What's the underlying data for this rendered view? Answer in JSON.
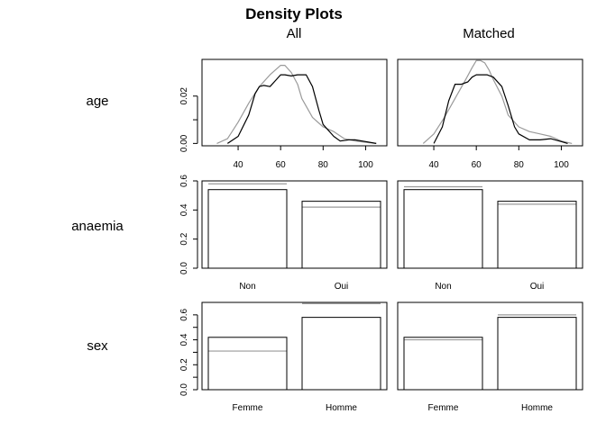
{
  "title": "Density Plots",
  "columns": [
    "All",
    "Matched"
  ],
  "colors": {
    "all_series": "#000000",
    "comparison_series": "#9a9a9a"
  },
  "chart_data": [
    {
      "type": "line",
      "variable": "age",
      "xlim": [
        23,
        110
      ],
      "ylim": [
        -0.001,
        0.0355
      ],
      "xticks": [
        40,
        60,
        80,
        100
      ],
      "yticks": [
        0.0,
        0.01,
        0.02
      ],
      "ytick_labels": [
        "0.00",
        "",
        "0.02"
      ],
      "panels": [
        {
          "column": "All",
          "series": [
            {
              "role": "treated",
              "x": [
                35,
                40,
                45,
                48,
                50,
                52,
                55,
                58,
                60,
                62,
                65,
                68,
                72,
                75,
                78,
                80,
                85,
                88,
                92,
                95,
                100,
                105
              ],
              "values": [
                0,
                0.003,
                0.012,
                0.021,
                0.024,
                0.0245,
                0.024,
                0.027,
                0.029,
                0.029,
                0.0285,
                0.029,
                0.029,
                0.024,
                0.014,
                0.008,
                0.003,
                0.001,
                0.0015,
                0.0015,
                0.0008,
                0
              ]
            },
            {
              "role": "control",
              "x": [
                30,
                35,
                40,
                45,
                50,
                55,
                60,
                62,
                65,
                68,
                70,
                75,
                80,
                85,
                90,
                95,
                100,
                105
              ],
              "values": [
                0,
                0.002,
                0.009,
                0.017,
                0.024,
                0.029,
                0.033,
                0.033,
                0.03,
                0.025,
                0.019,
                0.011,
                0.007,
                0.005,
                0.002,
                0.001,
                0.0005,
                0
              ]
            }
          ]
        },
        {
          "column": "Matched",
          "series": [
            {
              "role": "treated",
              "x": [
                40,
                44,
                47,
                50,
                53,
                56,
                58,
                60,
                62,
                65,
                68,
                72,
                75,
                78,
                80,
                85,
                90,
                95,
                100,
                103
              ],
              "values": [
                0,
                0.007,
                0.018,
                0.025,
                0.025,
                0.026,
                0.028,
                0.029,
                0.029,
                0.029,
                0.028,
                0.024,
                0.016,
                0.007,
                0.004,
                0.0015,
                0.0015,
                0.002,
                0.0008,
                0
              ]
            },
            {
              "role": "control",
              "x": [
                35,
                40,
                45,
                50,
                55,
                58,
                60,
                62,
                64,
                66,
                68,
                72,
                75,
                80,
                85,
                90,
                95,
                100,
                105
              ],
              "values": [
                0,
                0.004,
                0.011,
                0.019,
                0.027,
                0.032,
                0.035,
                0.035,
                0.034,
                0.031,
                0.027,
                0.02,
                0.012,
                0.007,
                0.005,
                0.004,
                0.003,
                0.001,
                0
              ]
            }
          ]
        }
      ]
    },
    {
      "type": "bar",
      "variable": "anaemia",
      "categories": [
        "Non",
        "Oui"
      ],
      "ylim": [
        0,
        0.6
      ],
      "yticks": [
        0.0,
        0.2,
        0.4,
        0.6
      ],
      "ytick_labels": [
        "0.0",
        "0.2",
        "0.4",
        "0.6"
      ],
      "panels": [
        {
          "column": "All",
          "series": [
            {
              "role": "treated",
              "values": [
                0.54,
                0.46
              ]
            },
            {
              "role": "control",
              "values": [
                0.58,
                0.42
              ]
            }
          ]
        },
        {
          "column": "Matched",
          "series": [
            {
              "role": "treated",
              "values": [
                0.54,
                0.46
              ]
            },
            {
              "role": "control",
              "values": [
                0.56,
                0.44
              ]
            }
          ]
        }
      ]
    },
    {
      "type": "bar",
      "variable": "sex",
      "categories": [
        "Femme",
        "Homme"
      ],
      "ylim": [
        0,
        0.7
      ],
      "yticks": [
        0.0,
        0.1,
        0.2,
        0.3,
        0.4,
        0.5,
        0.6
      ],
      "ytick_labels": [
        "0.0",
        "",
        "0.2",
        "",
        "0.4",
        "",
        "0.6"
      ],
      "panels": [
        {
          "column": "All",
          "series": [
            {
              "role": "treated",
              "values": [
                0.42,
                0.58
              ]
            },
            {
              "role": "control",
              "values": [
                0.31,
                0.69
              ]
            }
          ]
        },
        {
          "column": "Matched",
          "series": [
            {
              "role": "treated",
              "values": [
                0.42,
                0.58
              ]
            },
            {
              "role": "control",
              "values": [
                0.4,
                0.6
              ]
            }
          ]
        }
      ]
    }
  ]
}
